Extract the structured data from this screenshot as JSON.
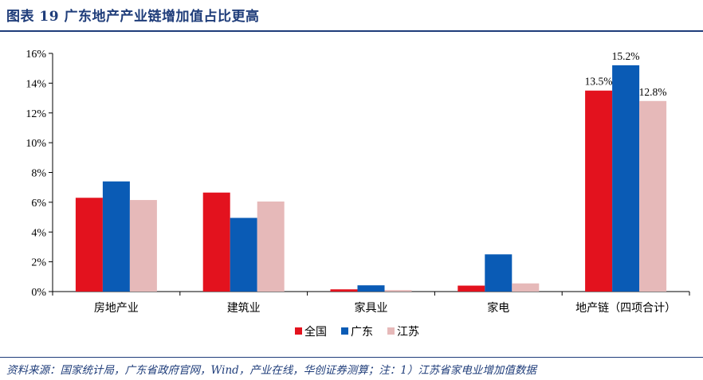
{
  "header": {
    "title": "图表 19    广东地产产业链增加值占比更高"
  },
  "footer": {
    "source": "资料来源：国家统计局，广东省政府官网，Wind，产业在线，华创证券测算；注：1）江苏省家电业增加值数据"
  },
  "chart_data": {
    "type": "bar",
    "categories": [
      "房地产业",
      "建筑业",
      "家具业",
      "家电",
      "地产链（四项合计）"
    ],
    "series": [
      {
        "name": "全国",
        "color": "#e3121e",
        "values": [
          6.3,
          6.65,
          0.15,
          0.4,
          13.5
        ]
      },
      {
        "name": "广东",
        "color": "#0a5bb5",
        "values": [
          7.4,
          4.95,
          0.42,
          2.5,
          15.2
        ]
      },
      {
        "name": "江苏",
        "color": "#e6b9b9",
        "values": [
          6.15,
          6.05,
          0.1,
          0.55,
          12.8
        ]
      }
    ],
    "data_labels": {
      "4": [
        "13.5%",
        "15.2%",
        "12.8%"
      ]
    },
    "ylim": [
      0,
      16
    ],
    "y_ticks": [
      "0%",
      "2%",
      "4%",
      "6%",
      "8%",
      "10%",
      "12%",
      "14%",
      "16%"
    ],
    "grid": false,
    "legend": "bottom"
  }
}
